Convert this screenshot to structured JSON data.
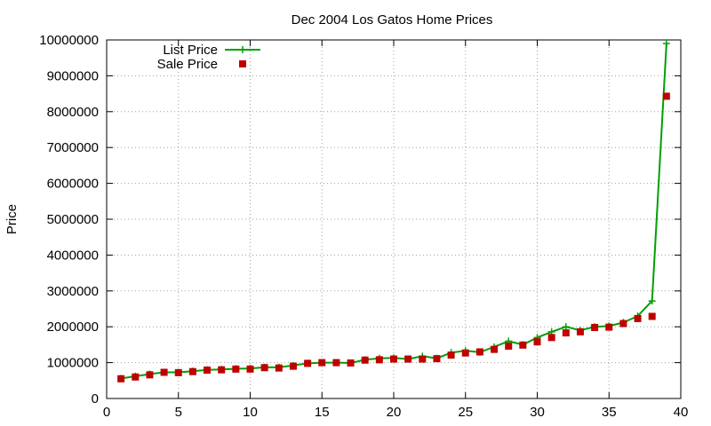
{
  "chart_data": {
    "type": "line",
    "title": "Dec 2004 Los Gatos Home Prices",
    "xlabel": "",
    "ylabel": "Price",
    "xlim": [
      0,
      40
    ],
    "ylim": [
      0,
      10000000
    ],
    "xticks": [
      0,
      5,
      10,
      15,
      20,
      25,
      30,
      35,
      40
    ],
    "yticks": [
      0,
      1000000,
      2000000,
      3000000,
      4000000,
      5000000,
      6000000,
      7000000,
      8000000,
      9000000,
      10000000
    ],
    "xtick_labels": [
      "0",
      "5",
      "10",
      "15",
      "20",
      "25",
      "30",
      "35",
      "40"
    ],
    "ytick_labels": [
      "0",
      "1000000",
      "2000000",
      "3000000",
      "4000000",
      "5000000",
      "6000000",
      "7000000",
      "8000000",
      "9000000",
      "10000000"
    ],
    "grid": true,
    "legend_position": "top-left",
    "x": [
      1,
      2,
      3,
      4,
      5,
      6,
      7,
      8,
      9,
      10,
      11,
      12,
      13,
      14,
      15,
      16,
      17,
      18,
      19,
      20,
      21,
      22,
      23,
      24,
      25,
      26,
      27,
      28,
      29,
      30,
      31,
      32,
      33,
      34,
      35,
      36,
      37,
      38,
      39
    ],
    "series": [
      {
        "name": "List Price",
        "style": "line-plus",
        "color": "#00a000",
        "values": [
          560000,
          620000,
          680000,
          730000,
          730000,
          760000,
          800000,
          810000,
          830000,
          840000,
          870000,
          870000,
          920000,
          980000,
          1000000,
          1000000,
          990000,
          1080000,
          1120000,
          1130000,
          1100000,
          1180000,
          1120000,
          1280000,
          1330000,
          1290000,
          1440000,
          1600000,
          1500000,
          1700000,
          1860000,
          2000000,
          1900000,
          2000000,
          2020000,
          2120000,
          2300000,
          2720000,
          9900000
        ]
      },
      {
        "name": "Sale Price",
        "style": "square-points",
        "color": "#c00000",
        "values": [
          550000,
          600000,
          660000,
          730000,
          720000,
          750000,
          790000,
          800000,
          820000,
          820000,
          860000,
          850000,
          900000,
          980000,
          1000000,
          1000000,
          990000,
          1070000,
          1080000,
          1100000,
          1100000,
          1100000,
          1110000,
          1210000,
          1270000,
          1300000,
          1370000,
          1460000,
          1490000,
          1580000,
          1700000,
          1830000,
          1860000,
          1980000,
          1990000,
          2090000,
          2230000,
          2290000,
          8430000
        ]
      }
    ]
  }
}
